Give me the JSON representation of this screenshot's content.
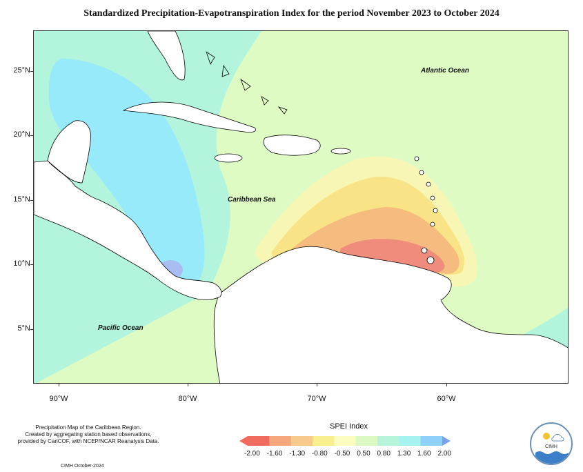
{
  "title": "Standardized Precipitation-Evapotranspiration Index for the period November 2023 to October 2024",
  "axes": {
    "y_labels": [
      "25°N",
      "20°N",
      "15°N",
      "10°N",
      "5°N"
    ],
    "x_labels": [
      "90°W",
      "80°W",
      "70°W",
      "60°W"
    ]
  },
  "map_labels": {
    "atlantic": "Atlantic Ocean",
    "caribbean": "Caribbean Sea",
    "pacific": "Pacific Ocean"
  },
  "caption": {
    "line1": "Precipitation Map of the Caribbean Region.",
    "line2": "Created by aggregating station based observations,",
    "line3": "provided by CariCOF, with NCEP/NCAR Reanalysis Data."
  },
  "credit": "CIMH October-2024",
  "legend": {
    "title": "SPEI Index",
    "labels": [
      "-2.00",
      "-1.60",
      "-1.30",
      "-0.80",
      "-0.50",
      "0.50",
      "0.80",
      "1.30",
      "1.60",
      "2.00"
    ],
    "colors": [
      "#f06a5e",
      "#f4a77a",
      "#f7c98a",
      "#f9ef8f",
      "#fafcc0",
      "#dcf9c4",
      "#b7f5da",
      "#a6f2f0",
      "#8ed0f7",
      "#7aa0ea"
    ]
  },
  "logo_text": "CIMH",
  "colors": {
    "near_normal": "#dffbc4",
    "wet_light": "#b2f5dc",
    "wet_mid": "#96eaf9",
    "wet_strong": "#a9bdf2",
    "dry_light": "#f8f6b4",
    "dry_mid": "#f8e486",
    "dry_strong": "#f6bb7e",
    "dry_severe": "#f08c7b"
  }
}
